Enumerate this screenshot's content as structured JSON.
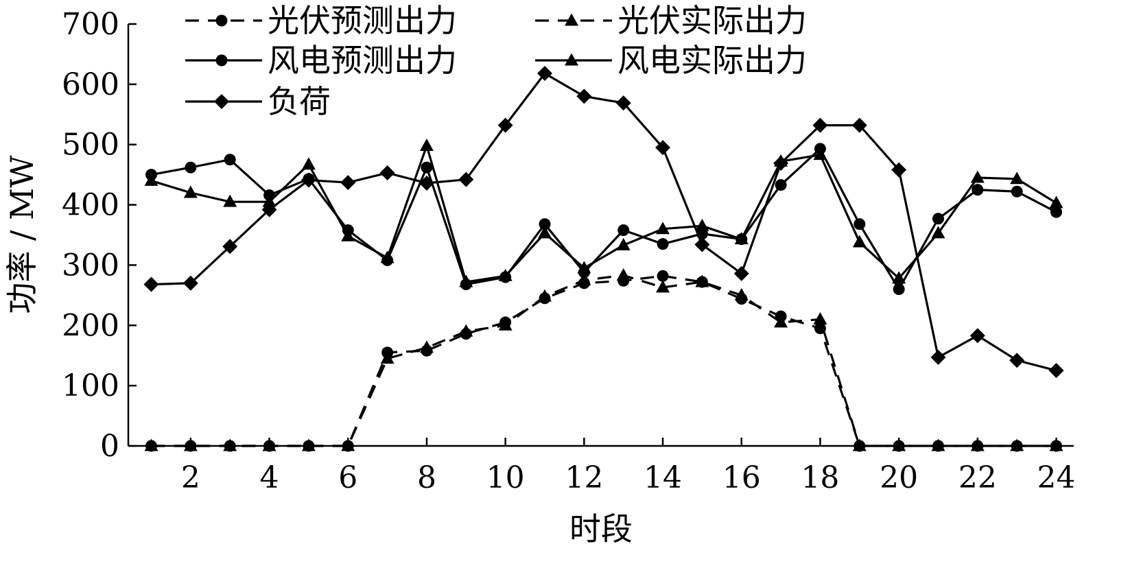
{
  "chart_data": {
    "type": "line",
    "xlabel": "时段",
    "ylabel": "功率 / MW",
    "xlim": [
      0,
      24
    ],
    "ylim": [
      0,
      700
    ],
    "x_ticks": [
      "2",
      "4",
      "6",
      "8",
      "10",
      "12",
      "14",
      "16",
      "18",
      "20",
      "22",
      "24"
    ],
    "y_ticks": [
      "0",
      "100",
      "200",
      "300",
      "400",
      "500",
      "600",
      "700"
    ],
    "grid": false,
    "legend_position": "top-left",
    "x": [
      1,
      2,
      3,
      4,
      5,
      6,
      7,
      8,
      9,
      10,
      11,
      12,
      13,
      14,
      15,
      16,
      17,
      18,
      19,
      20,
      21,
      22,
      23,
      24
    ],
    "series": [
      {
        "name": "光伏预测出力",
        "line": "dashed",
        "marker": "circle",
        "values": [
          0,
          0,
          0,
          0,
          0,
          0,
          155,
          158,
          186,
          205,
          245,
          270,
          274,
          282,
          272,
          244,
          215,
          195,
          0,
          0,
          0,
          0,
          0,
          0
        ]
      },
      {
        "name": "光伏实际出力",
        "line": "dashed",
        "marker": "triangle",
        "values": [
          0,
          0,
          0,
          0,
          0,
          0,
          145,
          163,
          190,
          200,
          248,
          275,
          283,
          263,
          272,
          250,
          205,
          210,
          0,
          0,
          0,
          0,
          0,
          0
        ]
      },
      {
        "name": "风电预测出力",
        "line": "solid",
        "marker": "circle",
        "values": [
          450,
          462,
          475,
          416,
          443,
          358,
          308,
          462,
          268,
          280,
          368,
          288,
          358,
          335,
          352,
          343,
          433,
          493,
          368,
          260,
          377,
          425,
          422,
          388
        ]
      },
      {
        "name": "风电实际出力",
        "line": "solid",
        "marker": "triangle",
        "values": [
          440,
          420,
          405,
          405,
          467,
          348,
          312,
          498,
          272,
          282,
          353,
          295,
          333,
          360,
          365,
          343,
          472,
          483,
          338,
          278,
          353,
          445,
          443,
          403
        ]
      },
      {
        "name": "负荷",
        "line": "solid",
        "marker": "diamond",
        "values": [
          268,
          270,
          331,
          392,
          441,
          437,
          453,
          436,
          442,
          532,
          618,
          580,
          569,
          495,
          334,
          286,
          469,
          532,
          532,
          458,
          147,
          183,
          142,
          125
        ]
      }
    ]
  }
}
